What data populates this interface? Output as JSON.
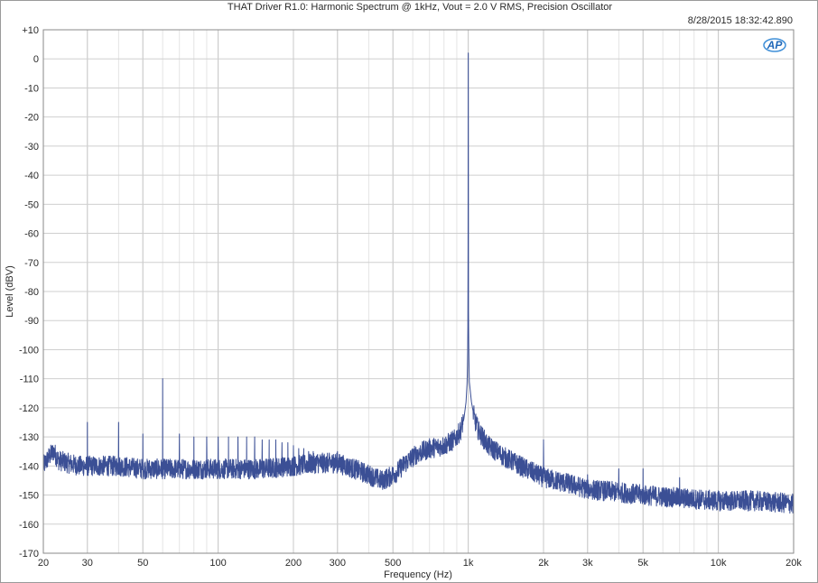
{
  "chart_data": {
    "type": "line",
    "title": "THAT Driver R1.0: Harmonic Spectrum @ 1kHz, Vout = 2.0 V RMS, Precision Oscillator",
    "timestamp": "8/28/2015 18:32:42.890",
    "logo_text": "AP",
    "xlabel": "Frequency (Hz)",
    "ylabel": "Level (dBV)",
    "x_scale": "log",
    "xlim": [
      20,
      20000
    ],
    "ylim": [
      -170,
      10
    ],
    "grid": true,
    "x_ticks": [
      {
        "value": 20,
        "label": "20"
      },
      {
        "value": 30,
        "label": "30"
      },
      {
        "value": 50,
        "label": "50"
      },
      {
        "value": 100,
        "label": "100"
      },
      {
        "value": 200,
        "label": "200"
      },
      {
        "value": 300,
        "label": "300"
      },
      {
        "value": 500,
        "label": "500"
      },
      {
        "value": 1000,
        "label": "1k"
      },
      {
        "value": 2000,
        "label": "2k"
      },
      {
        "value": 3000,
        "label": "3k"
      },
      {
        "value": 5000,
        "label": "5k"
      },
      {
        "value": 10000,
        "label": "10k"
      },
      {
        "value": 20000,
        "label": "20k"
      }
    ],
    "y_ticks": [
      {
        "value": 10,
        "label": "+10"
      },
      {
        "value": 0,
        "label": "0"
      },
      {
        "value": -10,
        "label": "-10"
      },
      {
        "value": -20,
        "label": "-20"
      },
      {
        "value": -30,
        "label": "-30"
      },
      {
        "value": -40,
        "label": "-40"
      },
      {
        "value": -50,
        "label": "-50"
      },
      {
        "value": -60,
        "label": "-60"
      },
      {
        "value": -70,
        "label": "-70"
      },
      {
        "value": -80,
        "label": "-80"
      },
      {
        "value": -90,
        "label": "-90"
      },
      {
        "value": -100,
        "label": "-100"
      },
      {
        "value": -110,
        "label": "-110"
      },
      {
        "value": -120,
        "label": "-120"
      },
      {
        "value": -130,
        "label": "-130"
      },
      {
        "value": -140,
        "label": "-140"
      },
      {
        "value": -150,
        "label": "-150"
      },
      {
        "value": -160,
        "label": "-160"
      },
      {
        "value": -170,
        "label": "-170"
      }
    ],
    "series": [
      {
        "color": "#3b4f95",
        "floor": [
          [
            20,
            -140
          ],
          [
            21,
            -137
          ],
          [
            22,
            -135
          ],
          [
            23,
            -138
          ],
          [
            25,
            -139
          ],
          [
            28,
            -140
          ],
          [
            32,
            -140
          ],
          [
            40,
            -140
          ],
          [
            50,
            -141
          ],
          [
            70,
            -141
          ],
          [
            100,
            -141
          ],
          [
            150,
            -141
          ],
          [
            200,
            -140
          ],
          [
            250,
            -139
          ],
          [
            300,
            -139
          ],
          [
            350,
            -141
          ],
          [
            400,
            -143
          ],
          [
            450,
            -145
          ],
          [
            480,
            -144
          ],
          [
            520,
            -142
          ],
          [
            560,
            -139
          ],
          [
            620,
            -136
          ],
          [
            700,
            -134
          ],
          [
            800,
            -133
          ],
          [
            880,
            -131
          ],
          [
            930,
            -128
          ],
          [
            960,
            -124
          ],
          [
            980,
            -118
          ],
          [
            990,
            -111
          ],
          [
            995,
            -100
          ],
          [
            998,
            -85
          ],
          [
            1000,
            -8
          ],
          [
            1002,
            -85
          ],
          [
            1005,
            -100
          ],
          [
            1010,
            -111
          ],
          [
            1030,
            -118
          ],
          [
            1060,
            -124
          ],
          [
            1100,
            -128
          ],
          [
            1200,
            -133
          ],
          [
            1400,
            -137
          ],
          [
            1700,
            -141
          ],
          [
            2000,
            -144
          ],
          [
            2500,
            -146
          ],
          [
            3000,
            -148
          ],
          [
            4000,
            -149
          ],
          [
            5000,
            -150
          ],
          [
            7000,
            -151
          ],
          [
            10000,
            -152
          ],
          [
            14000,
            -152
          ],
          [
            20000,
            -153
          ]
        ],
        "peaks": [
          [
            30,
            -125
          ],
          [
            40,
            -125
          ],
          [
            50,
            -129
          ],
          [
            60,
            -110
          ],
          [
            70,
            -129
          ],
          [
            80,
            -130
          ],
          [
            90,
            -130
          ],
          [
            100,
            -130
          ],
          [
            110,
            -130
          ],
          [
            120,
            -130
          ],
          [
            130,
            -130
          ],
          [
            140,
            -130
          ],
          [
            150,
            -131
          ],
          [
            160,
            -131
          ],
          [
            170,
            -131
          ],
          [
            180,
            -132
          ],
          [
            190,
            -132
          ],
          [
            200,
            -133
          ],
          [
            210,
            -134
          ],
          [
            220,
            -134
          ],
          [
            230,
            -135
          ],
          [
            240,
            -135
          ],
          [
            250,
            -136
          ],
          [
            260,
            -136
          ],
          [
            270,
            -137
          ],
          [
            280,
            -137
          ],
          [
            290,
            -136
          ],
          [
            300,
            -135
          ],
          [
            310,
            -137
          ],
          [
            1000,
            2
          ],
          [
            2000,
            -131
          ],
          [
            3000,
            -143
          ],
          [
            4000,
            -141
          ],
          [
            5000,
            -141
          ],
          [
            7000,
            -144
          ]
        ],
        "noise_band_db": 3.5
      }
    ]
  }
}
